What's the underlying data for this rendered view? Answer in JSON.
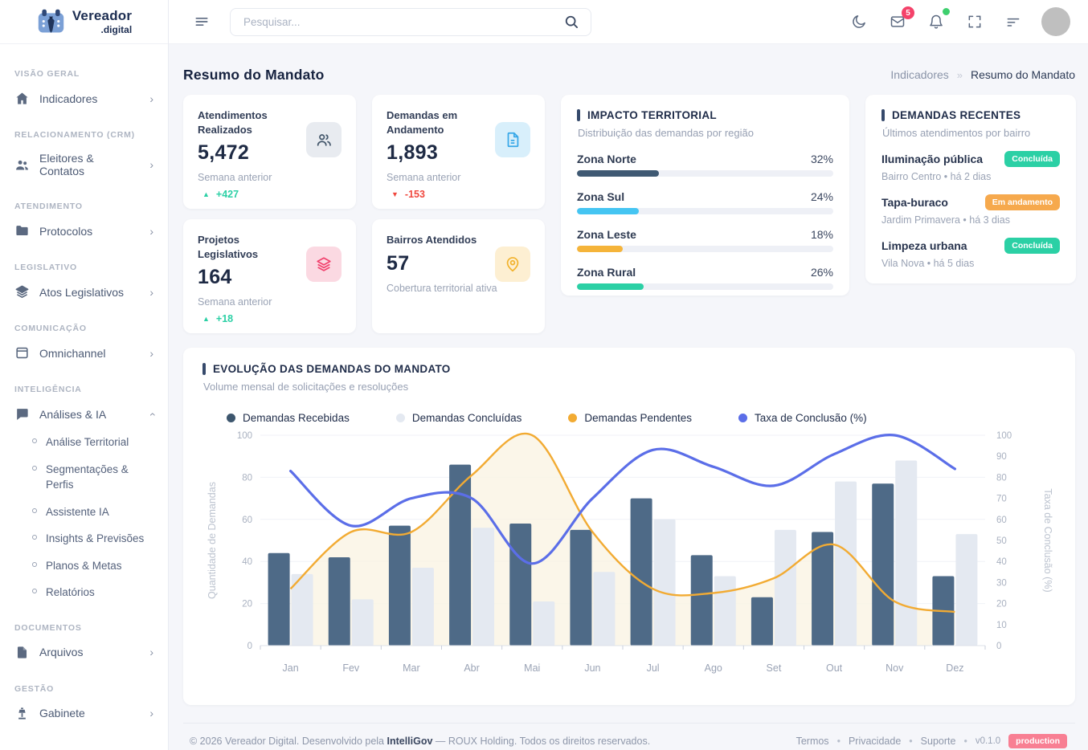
{
  "brand": {
    "name": "Vereador",
    "suffix": ".digital",
    "logo_icon": "calendar-tie-icon"
  },
  "topbar": {
    "search_placeholder": "Pesquisar...",
    "icons": [
      "menu-icon",
      "search-icon",
      "moon-icon",
      "mail-icon",
      "bell-icon",
      "fullscreen-icon",
      "filter-icon",
      "avatar"
    ],
    "mail_badge": "5"
  },
  "sidebar": {
    "sections": [
      {
        "caption": "VISÃO GERAL",
        "items": [
          {
            "label": "Indicadores",
            "icon": "home",
            "chevron": "right"
          }
        ]
      },
      {
        "caption": "RELACIONAMENTO (CRM)",
        "items": [
          {
            "label": "Eleitores & Contatos",
            "icon": "users",
            "chevron": "right"
          }
        ]
      },
      {
        "caption": "ATENDIMENTO",
        "items": [
          {
            "label": "Protocolos",
            "icon": "folder",
            "chevron": "right"
          }
        ]
      },
      {
        "caption": "LEGISLATIVO",
        "items": [
          {
            "label": "Atos Legislativos",
            "icon": "layers",
            "chevron": "right"
          }
        ]
      },
      {
        "caption": "COMUNICAÇÃO",
        "items": [
          {
            "label": "Omnichannel",
            "icon": "window",
            "chevron": "right"
          }
        ]
      },
      {
        "caption": "INTELIGÊNCIA",
        "items": [
          {
            "label": "Análises & IA",
            "icon": "chat",
            "chevron": "up",
            "children": [
              "Análise Territorial",
              "Segmentações & Perfis",
              "Assistente IA",
              "Insights & Previsões",
              "Planos & Metas",
              "Relatórios"
            ]
          }
        ]
      },
      {
        "caption": "DOCUMENTOS",
        "items": [
          {
            "label": "Arquivos",
            "icon": "file",
            "chevron": "right"
          }
        ]
      },
      {
        "caption": "GESTÃO",
        "items": [
          {
            "label": "Gabinete",
            "icon": "podium",
            "chevron": "right"
          }
        ]
      }
    ]
  },
  "page": {
    "title": "Resumo do Mandato",
    "breadcrumb": [
      "Indicadores",
      "Resumo do Mandato"
    ],
    "breadcrumb_sep": "»"
  },
  "kpis": [
    {
      "title": "Atendimentos Realizados",
      "value": "5,472",
      "subtitle": "Semana anterior",
      "trend": "+427",
      "trend_dir": "up",
      "icon": "users",
      "icon_bg": "#e8ebf0",
      "icon_color": "#44576b"
    },
    {
      "title": "Demandas em Andamento",
      "value": "1,893",
      "subtitle": "Semana anterior",
      "trend": "-153",
      "trend_dir": "down",
      "icon": "file",
      "icon_bg": "#d8effb",
      "icon_color": "#38a8e8"
    },
    {
      "title": "Projetos Legislativos",
      "value": "164",
      "subtitle": "Semana anterior",
      "trend": "+18",
      "trend_dir": "up",
      "icon": "layers",
      "icon_bg": "#fbd9e2",
      "icon_color": "#f1426e"
    },
    {
      "title": "Bairros Atendidos",
      "value": "57",
      "subtitle": "Cobertura territorial ativa",
      "trend": null,
      "icon": "pin",
      "icon_bg": "#fdefd2",
      "icon_color": "#f2b32e"
    }
  ],
  "territorial": {
    "title": "IMPACTO TERRITORIAL",
    "subtitle": "Distribuição das demandas por região",
    "rows": [
      {
        "label": "Zona Norte",
        "pct": "32%",
        "value": 32,
        "color": "#3f5973"
      },
      {
        "label": "Zona Sul",
        "pct": "24%",
        "value": 24,
        "color": "#45c5f2"
      },
      {
        "label": "Zona Leste",
        "pct": "18%",
        "value": 18,
        "color": "#f5b43a"
      },
      {
        "label": "Zona Rural",
        "pct": "26%",
        "value": 26,
        "color": "#2bd0a5"
      }
    ]
  },
  "recent": {
    "title": "DEMANDAS RECENTES",
    "subtitle": "Últimos atendimentos por bairro",
    "items": [
      {
        "title": "Iluminação pública",
        "meta": "Bairro Centro • há 2 dias",
        "badge": "Concluída",
        "badge_color": "#2bd0a5"
      },
      {
        "title": "Tapa-buraco",
        "meta": "Jardim Primavera • há 3 dias",
        "badge": "Em andamento",
        "badge_color": "#f6a94d"
      },
      {
        "title": "Limpeza urbana",
        "meta": "Vila Nova • há 5 dias",
        "badge": "Concluída",
        "badge_color": "#2bd0a5"
      }
    ]
  },
  "chart_card": {
    "title": "EVOLUÇÃO DAS DEMANDAS DO MANDATO",
    "subtitle": "Volume mensal de solicitações e resoluções"
  },
  "chart_data": {
    "type": "bar",
    "categories": [
      "Jan",
      "Fev",
      "Mar",
      "Abr",
      "Mai",
      "Jun",
      "Jul",
      "Ago",
      "Set",
      "Out",
      "Nov",
      "Dez"
    ],
    "series": [
      {
        "name": "Demandas Recebidas",
        "kind": "bar",
        "color": "#4e6a87",
        "axis": "left",
        "values": [
          44,
          42,
          57,
          86,
          58,
          55,
          70,
          43,
          23,
          54,
          77,
          33
        ]
      },
      {
        "name": "Demandas Concluídas",
        "kind": "bar",
        "color": "#e4e9f1",
        "axis": "left",
        "values": [
          34,
          22,
          37,
          56,
          21,
          35,
          60,
          33,
          55,
          78,
          88,
          53
        ]
      },
      {
        "name": "Demandas Pendentes",
        "kind": "area",
        "color": "#f2ab33",
        "fill": "#faf3e2",
        "axis": "left",
        "values": [
          27,
          54,
          54,
          81,
          100,
          54,
          27,
          25,
          32,
          48,
          21,
          16
        ]
      },
      {
        "name": "Taxa de Conclusão (%)",
        "kind": "line",
        "color": "#5b6ee8",
        "axis": "right",
        "values": [
          83,
          57,
          70,
          70,
          39,
          70,
          93,
          85,
          76,
          91,
          100,
          84
        ]
      }
    ],
    "ylabel_left": "Quantidade de Demandas",
    "ylabel_right": "Taxa de Conclusão (%)",
    "ylim_left": [
      0,
      100
    ],
    "ylim_right": [
      0,
      100
    ],
    "yticks_left": [
      0,
      20,
      40,
      60,
      80,
      100
    ],
    "yticks_right": [
      0,
      10,
      20,
      30,
      40,
      50,
      60,
      70,
      80,
      90,
      100
    ],
    "grid": true,
    "legend_position": "top"
  },
  "footer": {
    "copyright_prefix": "© 2026 Vereador Digital. Desenvolvido pela",
    "dev_brand": "IntelliGov",
    "copyright_suffix": "— ROUX Holding. Todos os direitos reservados.",
    "links": [
      "Termos",
      "Privacidade",
      "Suporte"
    ],
    "link_sep": "•",
    "version": "v0.1.0",
    "env": "production"
  }
}
